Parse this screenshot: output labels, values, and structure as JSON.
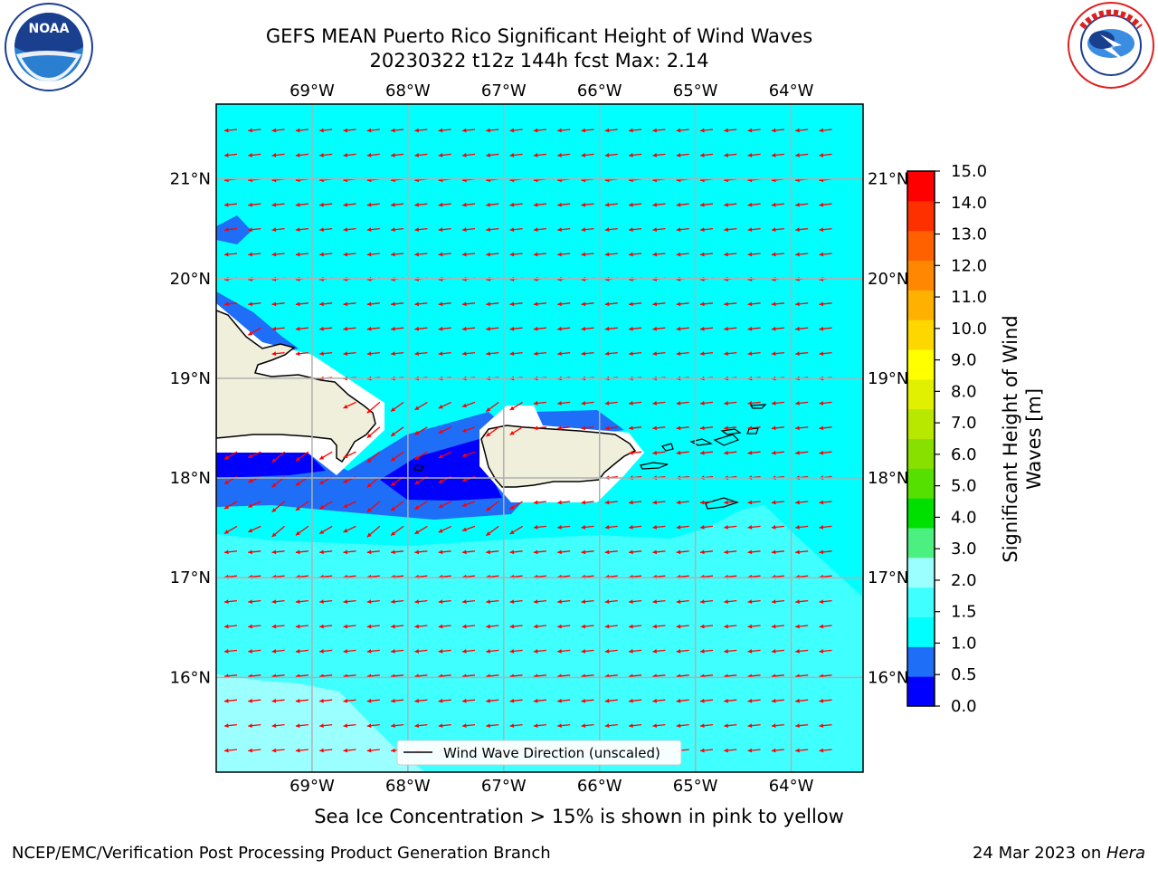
{
  "header": {
    "title_line1": "GEFS MEAN Puerto Rico Significant Height of Wind Waves",
    "title_line2": "20230322 t12z 144h fcst   Max: 2.14"
  },
  "logos": {
    "left": {
      "name": "noaa-logo",
      "text": "NOAA",
      "ring_text": "NATIONAL OCEANIC AND ATMOSPHERIC ADMINISTRATION · U.S. DEPARTMENT OF COMMERCE"
    },
    "right": {
      "name": "nws-logo",
      "ring_text": "NATIONAL WEATHER SERVICE"
    }
  },
  "map": {
    "lon_labels": [
      "69°W",
      "68°W",
      "67°W",
      "66°W",
      "65°W",
      "64°W"
    ],
    "lat_labels": [
      "21°N",
      "20°N",
      "19°N",
      "18°N",
      "17°N",
      "16°N"
    ],
    "lon_range": [
      -70.0,
      -63.25
    ],
    "lat_range": [
      15.05,
      21.75
    ],
    "legend_label": "Wind Wave Direction (unscaled)",
    "arrow_color": "#ff0000",
    "land_color": "#efefdc"
  },
  "colorbar": {
    "label": "Significant Height of Wind Waves [m]",
    "ticks": [
      "0.0",
      "0.5",
      "1.0",
      "1.5",
      "2.0",
      "3.0",
      "4.0",
      "5.0",
      "6.0",
      "7.0",
      "8.0",
      "9.0",
      "10.0",
      "11.0",
      "12.0",
      "13.0",
      "14.0",
      "15.0"
    ],
    "colors": [
      "#0000ff",
      "#1e6ef8",
      "#00ffff",
      "#40ffff",
      "#9cffff",
      "#4cf080",
      "#00e000",
      "#55e000",
      "#88e000",
      "#b8e800",
      "#e0f000",
      "#ffff00",
      "#ffd700",
      "#ffb000",
      "#ff8800",
      "#ff6000",
      "#ff3000",
      "#ff0000"
    ]
  },
  "bottom_note": "Sea Ice Concentration > 15% is shown in pink to yellow",
  "footer": {
    "left": "NCEP/EMC/Verification Post Processing Product Generation Branch",
    "right_prefix": "24 Mar 2023 on ",
    "right_host": "Hera"
  }
}
